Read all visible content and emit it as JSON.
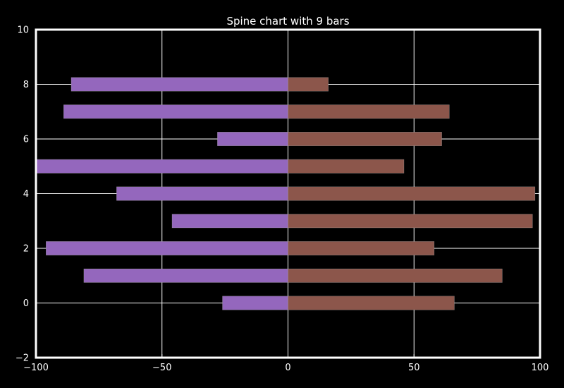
{
  "chart_data": {
    "type": "bar",
    "orientation": "horizontal",
    "title": "Spine chart with 9 bars",
    "xlabel": "",
    "ylabel": "",
    "xlim": [
      -100,
      100
    ],
    "ylim": [
      -2,
      10
    ],
    "xticks": [
      "−100",
      "−50",
      "0",
      "50",
      "100"
    ],
    "xtick_values": [
      -100,
      -50,
      0,
      50,
      100
    ],
    "yticks": [
      "−2",
      "0",
      "2",
      "4",
      "6",
      "8",
      "10"
    ],
    "ytick_values": [
      -2,
      0,
      2,
      4,
      6,
      8,
      10
    ],
    "grid": true,
    "background": "#000000",
    "categories": [
      0,
      1,
      2,
      3,
      4,
      5,
      6,
      7,
      8
    ],
    "series": [
      {
        "color": "#9467bd",
        "values": [
          -26,
          -81,
          -96,
          -46,
          -68,
          -100,
          -28,
          -89,
          -86
        ]
      },
      {
        "color": "#8c564b",
        "values": [
          66,
          85,
          58,
          97,
          98,
          46,
          61,
          64,
          16
        ]
      }
    ]
  }
}
